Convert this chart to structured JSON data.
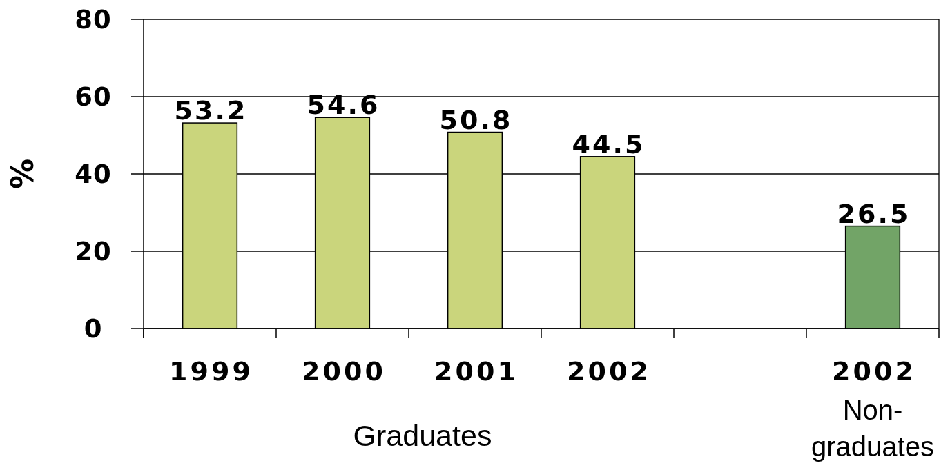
{
  "chart_data": {
    "type": "bar",
    "categories": [
      "1999",
      "2000",
      "2001",
      "2002",
      null,
      "2002"
    ],
    "values": [
      53.2,
      54.6,
      50.8,
      44.5,
      null,
      26.5
    ],
    "colors": [
      "#cad57c",
      "#cad57c",
      "#cad57c",
      "#cad57c",
      null,
      "#72a467"
    ],
    "ylabel": "%",
    "ylim": [
      0,
      80
    ],
    "yticks": [
      0,
      20,
      40,
      60,
      80
    ],
    "grid": "y",
    "data_labels": true,
    "annotations": [
      "Graduates",
      "Non-graduates"
    ]
  }
}
